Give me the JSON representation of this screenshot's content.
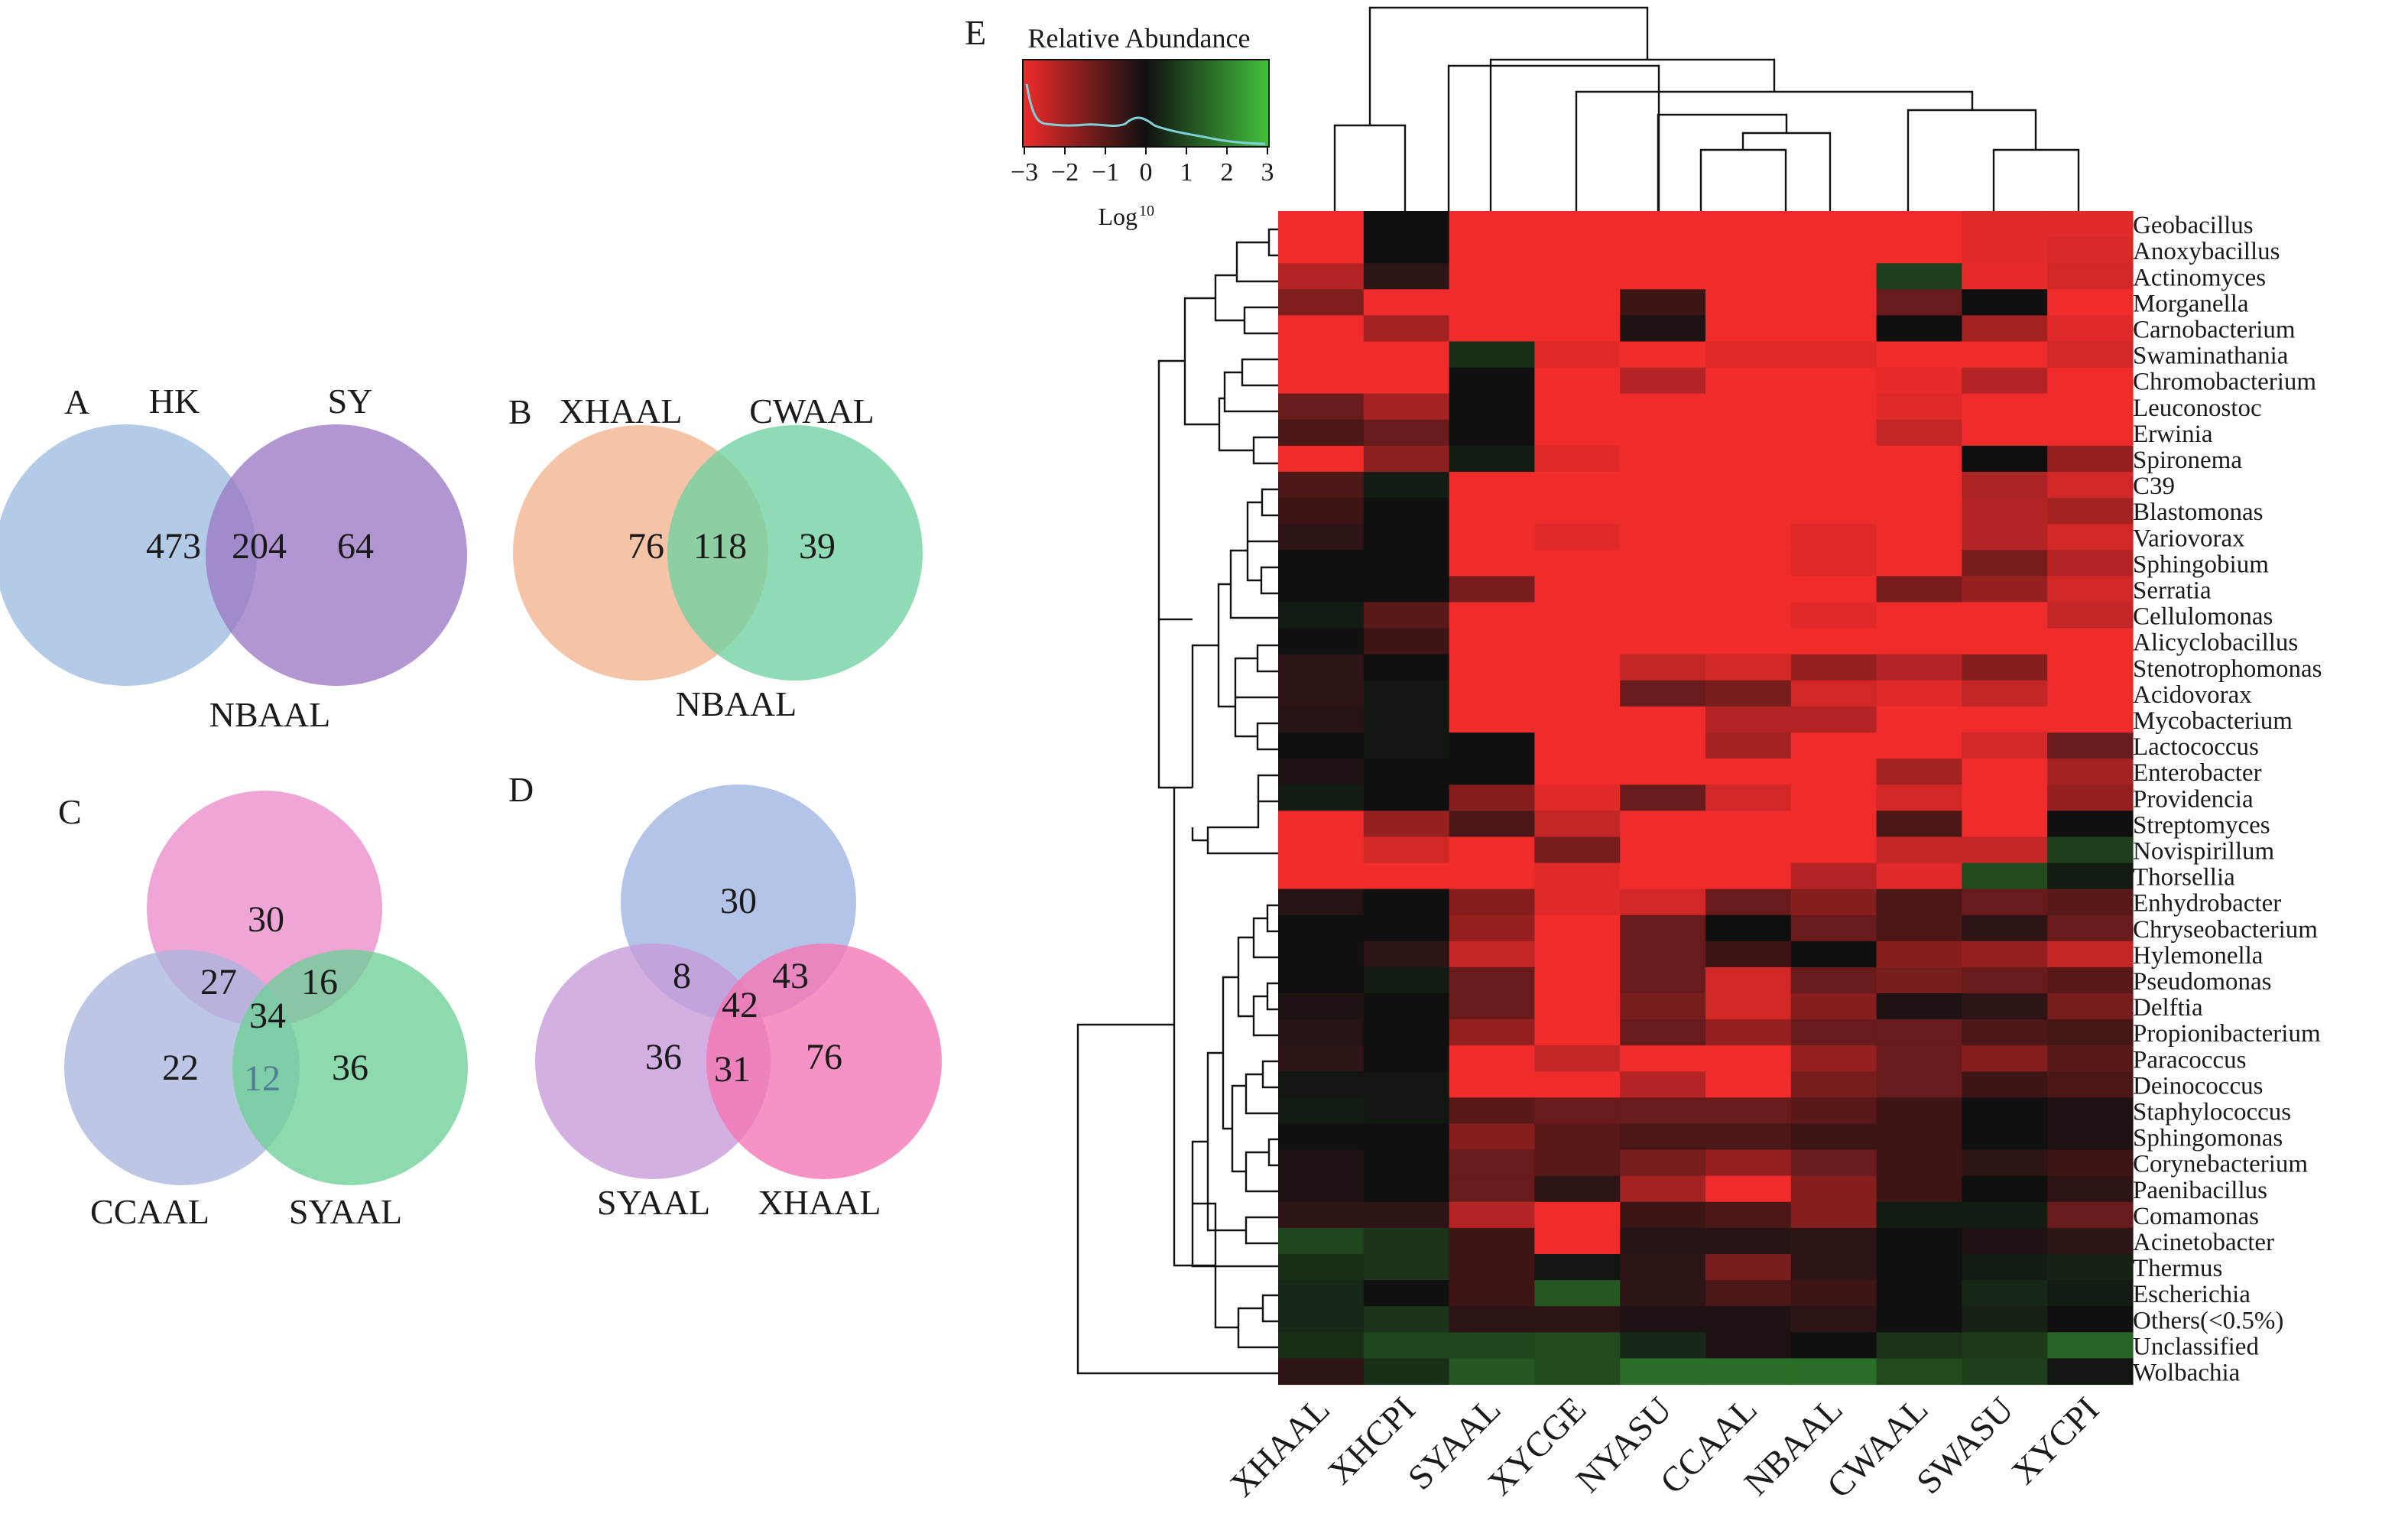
{
  "panels": {
    "A": {
      "letter": "A",
      "sets": [
        "HK",
        "SY"
      ],
      "counts": [
        "473",
        "204",
        "64"
      ],
      "bottom_label": "NBAAL"
    },
    "B": {
      "letter": "B",
      "sets": [
        "XHAAL",
        "CWAAL"
      ],
      "counts": [
        "76",
        "118",
        "39"
      ],
      "bottom_label": "NBAAL"
    },
    "C": {
      "letter": "C",
      "sets": [
        "CCAAL",
        "SYAAL"
      ],
      "counts": [
        "30",
        "27",
        "16",
        "34",
        "22",
        "12",
        "36"
      ]
    },
    "D": {
      "letter": "D",
      "sets": [
        "SYAAL",
        "XHAAL"
      ],
      "counts": [
        "30",
        "8",
        "43",
        "42",
        "36",
        "31",
        "76"
      ]
    },
    "E": {
      "letter": "E"
    }
  },
  "colors": {
    "A_left": "#9dbde0",
    "A_right": "#9b78c4",
    "B_left": "#f2b48e",
    "B_right": "#6fd1a0",
    "C_top": "#eb8ccb",
    "C_left": "#aab6de",
    "C_right": "#6dcf97",
    "D_top": "#9fb3e2",
    "D_left": "#c79ad9",
    "D_right": "#f574b4",
    "heat_red": "#ef2b2b",
    "heat_black": "#101010",
    "heat_green": "#42c13c",
    "dendro": "#111111",
    "density_line": "#7fd0d8"
  },
  "legend": {
    "title": "Relative Abundance",
    "ticks": [
      "−3",
      "−2",
      "−1",
      "0",
      "1",
      "2",
      "3"
    ],
    "xlabel": "Log",
    "xlabel_sup": "10"
  },
  "chart_data": {
    "type": "heatmap",
    "scale": "log10 relative abundance, -3 (red) to 3 (green)",
    "columns": [
      "XHAAL",
      "XHCPI",
      "SYAAL",
      "XYCGE",
      "NYASU",
      "CCAAL",
      "NBAAL",
      "CWAAL",
      "SWASU",
      "XYCPI"
    ],
    "rows": [
      "Geobacillus",
      "Anoxybacillus",
      "Actinomyces",
      "Morganella",
      "Carnobacterium",
      "Swaminathania",
      "Chromobacterium",
      "Leuconostoc",
      "Erwinia",
      "Spironema",
      "C39",
      "Blastomonas",
      "Variovorax",
      "Sphingobium",
      "Serratia",
      "Cellulomonas",
      "Alicyclobacillus",
      "Stenotrophomonas",
      "Acidovorax",
      "Mycobacterium",
      "Lactococcus",
      "Enterobacter",
      "Providencia",
      "Streptomyces",
      "Novispirillum",
      "Thorsellia",
      "Enhydrobacter",
      "Chryseobacterium",
      "Hylemonella",
      "Pseudomonas",
      "Delftia",
      "Propionibacterium",
      "Paracoccus",
      "Deinococcus",
      "Staphylococcus",
      "Sphingomonas",
      "Corynebacterium",
      "Paenibacillus",
      "Comamonas",
      "Acinetobacter",
      "Thermus",
      "Escherichia",
      "Others(<0.5%)",
      "Unclassified",
      "Wolbachia"
    ],
    "values": [
      [
        -3,
        0,
        -3,
        -3,
        -3,
        -3,
        -3,
        -3,
        -2.8,
        -2.8
      ],
      [
        -3,
        0,
        -3,
        -3,
        -3,
        -3,
        -3,
        -3,
        -2.8,
        -2.7
      ],
      [
        -2.2,
        -0.4,
        -3,
        -3,
        -3,
        -3,
        -3,
        0.8,
        -2.9,
        -2.6
      ],
      [
        -1.5,
        -3,
        -3,
        -3,
        -0.6,
        -3,
        -3,
        -1.2,
        0,
        -3
      ],
      [
        -3,
        -2,
        -3,
        -3,
        -0.2,
        -3,
        -3,
        0,
        -2,
        -2.8
      ],
      [
        -3,
        -3,
        0.5,
        -2.8,
        -3,
        -2.8,
        -2.8,
        -3,
        -3,
        -2.6
      ],
      [
        -3,
        -3,
        0,
        -3,
        -2.2,
        -3,
        -3,
        -2.9,
        -2.2,
        -3
      ],
      [
        -1.2,
        -2,
        0,
        -3,
        -3,
        -3,
        -3,
        -2.8,
        -3,
        -3
      ],
      [
        -0.8,
        -1.2,
        0,
        -3,
        -3,
        -3,
        -3,
        -2.4,
        -3,
        -3
      ],
      [
        -3,
        -1.7,
        0.2,
        -2.8,
        -3,
        -3,
        -3,
        -3,
        0,
        -1.8
      ],
      [
        -0.8,
        0.2,
        -3,
        -3,
        -3,
        -3,
        -3,
        -3,
        -2.1,
        -2.6
      ],
      [
        -0.6,
        0,
        -3,
        -3,
        -3,
        -3,
        -3,
        -3,
        -2.2,
        -2
      ],
      [
        -0.4,
        0,
        -3,
        -2.8,
        -3,
        -3,
        -2.8,
        -3,
        -2.2,
        -2.6
      ],
      [
        0,
        0,
        -3,
        -3,
        -3,
        -3,
        -2.8,
        -3,
        -1.4,
        -2.2
      ],
      [
        0,
        0,
        -1.4,
        -3,
        -3,
        -3,
        -3,
        -1.4,
        -1.8,
        -2.6
      ],
      [
        0.2,
        -1,
        -3,
        -3,
        -3,
        -3,
        -2.8,
        -3,
        -3,
        -2.4
      ],
      [
        0,
        -0.6,
        -3,
        -3,
        -3,
        -3,
        -3,
        -3,
        -3,
        -3
      ],
      [
        -0.4,
        0,
        -3,
        -3,
        -2.4,
        -2.6,
        -1.8,
        -2.2,
        -1.6,
        -3
      ],
      [
        -0.4,
        0.1,
        -3,
        -3,
        -1.2,
        -1.4,
        -2.6,
        -2.8,
        -2.4,
        -3
      ],
      [
        -0.3,
        0.1,
        -3,
        -3,
        -3,
        -2.2,
        -2.2,
        -3,
        -3,
        -3
      ],
      [
        0,
        0.1,
        0,
        -3,
        -3,
        -2,
        -3,
        -3,
        -2.6,
        -1.2
      ],
      [
        -0.2,
        0,
        0,
        -3,
        -3,
        -3,
        -3,
        -2,
        -3,
        -2
      ],
      [
        0.2,
        0,
        -1.6,
        -2.8,
        -1.2,
        -2.6,
        -3,
        -2.6,
        -3,
        -1.8
      ],
      [
        -3,
        -1.8,
        -0.8,
        -2.4,
        -3,
        -3,
        -3,
        -0.8,
        -3,
        0
      ],
      [
        -3,
        -2.6,
        -3,
        -1.4,
        -3,
        -3,
        -3,
        -2.4,
        -2.4,
        0.8
      ],
      [
        -3,
        -3,
        -3,
        -2.8,
        -3,
        -3,
        -2.2,
        -2.8,
        1,
        0.2
      ],
      [
        -0.3,
        0,
        -1.6,
        -2.8,
        -2.6,
        -1.2,
        -1.6,
        -0.8,
        -1.2,
        -1
      ],
      [
        0,
        0,
        -1.8,
        -3,
        -1.2,
        0,
        -1.2,
        -0.8,
        -0.4,
        -1.2
      ],
      [
        0,
        -0.4,
        -2.4,
        -3,
        -1.2,
        -0.6,
        0,
        -1.6,
        -1.8,
        -2.4
      ],
      [
        0,
        0.2,
        -1.2,
        -3,
        -1.2,
        -2.6,
        -1.2,
        -1.4,
        -1.2,
        -1
      ],
      [
        -0.2,
        0,
        -1.2,
        -3,
        -1.4,
        -2.6,
        -1.6,
        -0.2,
        -0.4,
        -1.4
      ],
      [
        -0.3,
        0,
        -1.8,
        -3,
        -1.2,
        -1.8,
        -1.2,
        -1.2,
        -0.8,
        -0.7
      ],
      [
        -0.4,
        0,
        -3,
        -2.4,
        -3,
        -3,
        -1.8,
        -1.2,
        -1.6,
        -1
      ],
      [
        0.1,
        0.1,
        -3,
        -3,
        -2.2,
        -3,
        -1.4,
        -1.2,
        -0.6,
        -0.8
      ],
      [
        0.2,
        0.1,
        -1,
        -1.2,
        -1.2,
        -1.2,
        -1,
        -0.6,
        0,
        -0.2
      ],
      [
        0,
        0,
        -1.6,
        -1,
        -0.8,
        -0.8,
        -0.6,
        -0.6,
        0,
        -0.2
      ],
      [
        -0.2,
        0,
        -1.2,
        -1,
        -1.4,
        -1.8,
        -1.2,
        -0.6,
        -0.4,
        -0.6
      ],
      [
        -0.2,
        0,
        -1.2,
        -0.4,
        -2,
        -3,
        -1.6,
        -0.6,
        0,
        -0.4
      ],
      [
        -0.4,
        -0.4,
        -2.2,
        -3,
        -0.6,
        -0.8,
        -1.6,
        0.2,
        0.2,
        -1.2
      ],
      [
        0.9,
        0.6,
        -0.6,
        -3,
        -0.3,
        -0.3,
        -0.4,
        0,
        -0.2,
        -0.4
      ],
      [
        0.5,
        0.6,
        -0.6,
        0.1,
        -0.4,
        -1.4,
        -0.4,
        0,
        0.2,
        0.3
      ],
      [
        0.4,
        0,
        -0.6,
        1.2,
        -0.4,
        -0.8,
        -0.6,
        0,
        0.4,
        0.2
      ],
      [
        0.4,
        0.6,
        -0.4,
        -0.4,
        -0.2,
        -0.2,
        -0.4,
        0,
        0.3,
        0
      ],
      [
        0.5,
        0.9,
        0.9,
        1,
        0.4,
        -0.2,
        0,
        0.6,
        0.7,
        1.4
      ],
      [
        -0.4,
        0.5,
        1.2,
        1,
        1.6,
        1.6,
        1.6,
        1,
        0.8,
        0.1
      ]
    ]
  }
}
